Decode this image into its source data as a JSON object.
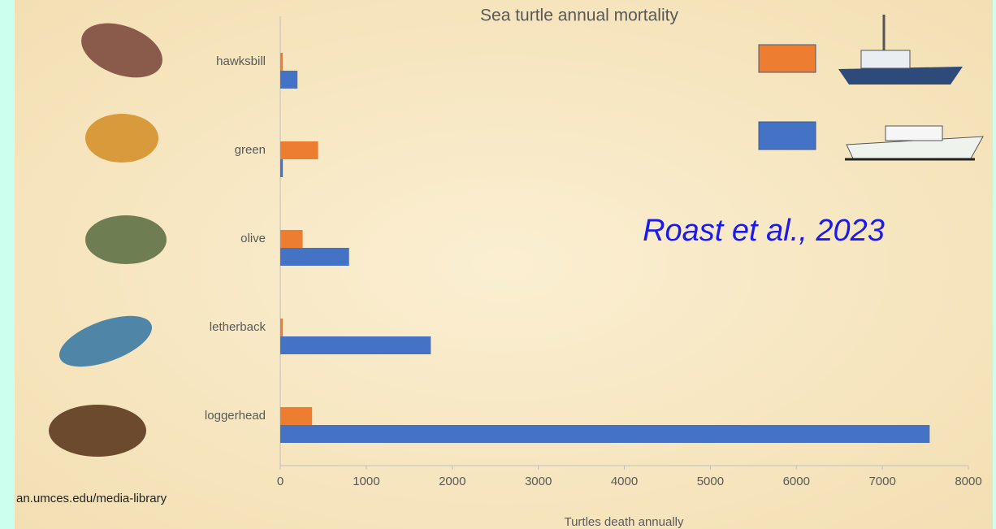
{
  "chart_data": {
    "type": "hbar",
    "title": "Sea turtle annual mortality",
    "categories": [
      "hawksbill",
      "green",
      "olive",
      "letherback",
      "loggerhead"
    ],
    "series": [
      {
        "color": "#ed7d31",
        "values": [
          30,
          440,
          260,
          30,
          370
        ]
      },
      {
        "color": "#4472c4",
        "values": [
          200,
          30,
          800,
          1750,
          7550
        ]
      }
    ],
    "xlim": [
      0,
      8000
    ],
    "xticks": [
      0,
      1000,
      2000,
      3000,
      4000,
      5000,
      6000,
      7000,
      8000
    ],
    "x_label": "Turtles death annually",
    "annotation": "Roast et al., 2023",
    "credit": "an.umces.edu/media-library"
  }
}
